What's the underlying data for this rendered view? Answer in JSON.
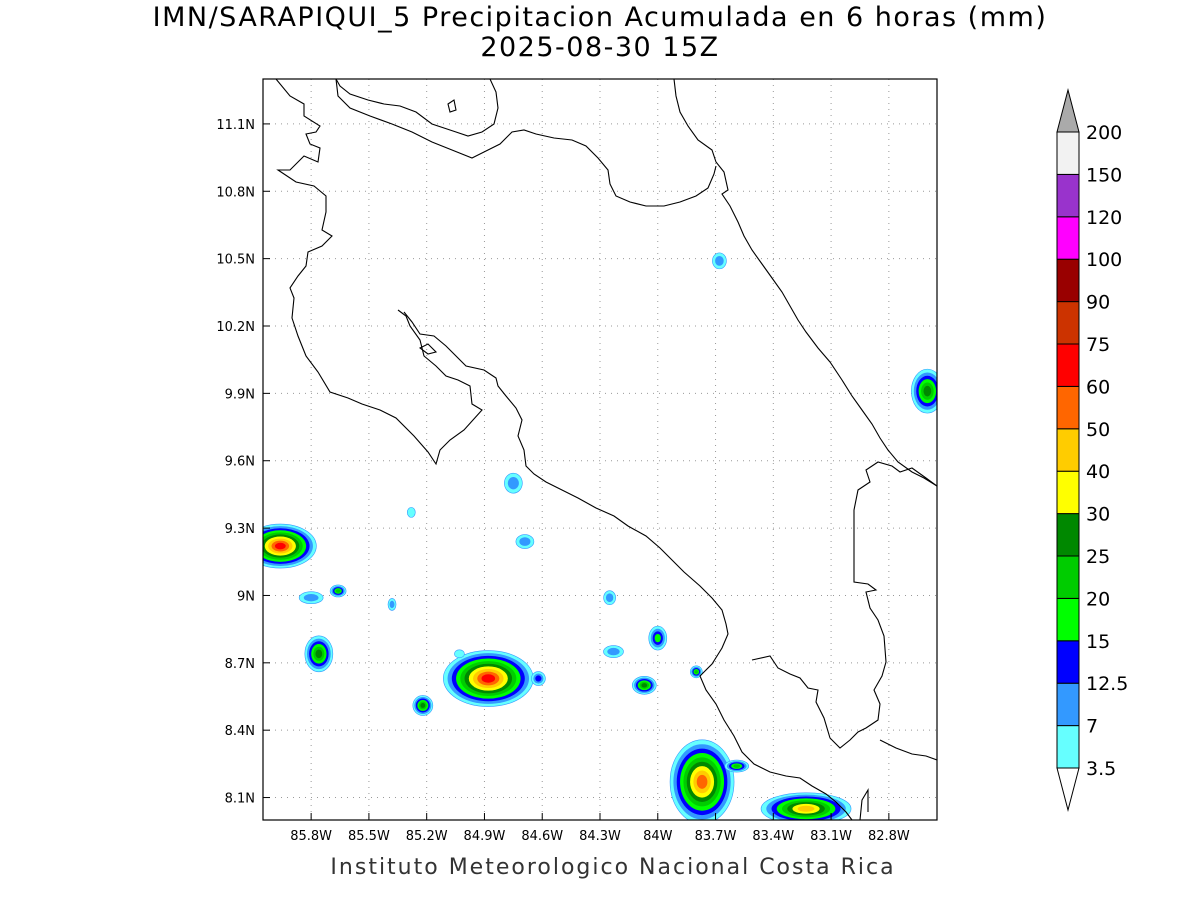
{
  "header": {
    "title_line1": "IMN/SARAPIQUI_5 Precipitacion Acumulada en 6 horas (mm)",
    "title_line2": "2025-08-30 15Z"
  },
  "footer": {
    "credit": "Instituto Meteorologico Nacional Costa Rica"
  },
  "map": {
    "lon_range": [
      -86.05,
      -82.55
    ],
    "lat_range": [
      8.0,
      11.3
    ],
    "lon_ticks": [
      {
        "value": -85.8,
        "label": "85.8W"
      },
      {
        "value": -85.5,
        "label": "85.5W"
      },
      {
        "value": -85.2,
        "label": "85.2W"
      },
      {
        "value": -84.9,
        "label": "84.9W"
      },
      {
        "value": -84.6,
        "label": "84.6W"
      },
      {
        "value": -84.3,
        "label": "84.3W"
      },
      {
        "value": -84.0,
        "label": "84W"
      },
      {
        "value": -83.7,
        "label": "83.7W"
      },
      {
        "value": -83.4,
        "label": "83.4W"
      },
      {
        "value": -83.1,
        "label": "83.1W"
      },
      {
        "value": -82.8,
        "label": "82.8W"
      }
    ],
    "lat_ticks": [
      {
        "value": 8.1,
        "label": "8.1N"
      },
      {
        "value": 8.4,
        "label": "8.4N"
      },
      {
        "value": 8.7,
        "label": "8.7N"
      },
      {
        "value": 9.0,
        "label": "9N"
      },
      {
        "value": 9.3,
        "label": "9.3N"
      },
      {
        "value": 9.6,
        "label": "9.6N"
      },
      {
        "value": 9.9,
        "label": "9.9N"
      },
      {
        "value": 10.2,
        "label": "10.2N"
      },
      {
        "value": 10.5,
        "label": "10.5N"
      },
      {
        "value": 10.8,
        "label": "10.8N"
      },
      {
        "value": 11.1,
        "label": "11.1N"
      }
    ]
  },
  "colorbar": {
    "levels": [
      {
        "label": "3.5",
        "color": "#66ffff"
      },
      {
        "label": "7",
        "color": "#3399ff"
      },
      {
        "label": "12.5",
        "color": "#0000ff"
      },
      {
        "label": "15",
        "color": "#00ff00"
      },
      {
        "label": "20",
        "color": "#00cc00"
      },
      {
        "label": "25",
        "color": "#008800"
      },
      {
        "label": "30",
        "color": "#ffff00"
      },
      {
        "label": "40",
        "color": "#ffcc00"
      },
      {
        "label": "50",
        "color": "#ff6600"
      },
      {
        "label": "60",
        "color": "#ff0000"
      },
      {
        "label": "75",
        "color": "#cc3300"
      },
      {
        "label": "90",
        "color": "#990000"
      },
      {
        "label": "100",
        "color": "#ff00ff"
      },
      {
        "label": "120",
        "color": "#9933cc"
      },
      {
        "label": "150",
        "color": "#f2f2f2"
      },
      {
        "label": "200",
        "color": "#aaaaaa"
      }
    ]
  },
  "precipitation_cells": [
    {
      "lon": -85.96,
      "lat": 9.22,
      "rx": 36,
      "ry": 22,
      "max_level": 9
    },
    {
      "lon": -85.76,
      "lat": 8.74,
      "rx": 14,
      "ry": 18,
      "max_level": 5
    },
    {
      "lon": -85.8,
      "lat": 8.99,
      "rx": 12,
      "ry": 6,
      "max_level": 1
    },
    {
      "lon": -85.66,
      "lat": 9.02,
      "rx": 8,
      "ry": 6,
      "max_level": 4
    },
    {
      "lon": -85.38,
      "lat": 8.96,
      "rx": 4,
      "ry": 6,
      "max_level": 1
    },
    {
      "lon": -85.22,
      "lat": 8.51,
      "rx": 10,
      "ry": 10,
      "max_level": 5
    },
    {
      "lon": -84.88,
      "lat": 8.63,
      "rx": 45,
      "ry": 28,
      "max_level": 9
    },
    {
      "lon": -84.62,
      "lat": 8.63,
      "rx": 7,
      "ry": 7,
      "max_level": 2
    },
    {
      "lon": -84.75,
      "lat": 9.5,
      "rx": 9,
      "ry": 10,
      "max_level": 1
    },
    {
      "lon": -84.69,
      "lat": 9.24,
      "rx": 9,
      "ry": 7,
      "max_level": 1
    },
    {
      "lon": -84.07,
      "lat": 8.6,
      "rx": 12,
      "ry": 9,
      "max_level": 5
    },
    {
      "lon": -84.0,
      "lat": 8.81,
      "rx": 9,
      "ry": 12,
      "max_level": 3
    },
    {
      "lon": -84.25,
      "lat": 8.99,
      "rx": 6,
      "ry": 7,
      "max_level": 1
    },
    {
      "lon": -84.23,
      "lat": 8.75,
      "rx": 10,
      "ry": 6,
      "max_level": 1
    },
    {
      "lon": -83.8,
      "lat": 8.66,
      "rx": 6,
      "ry": 6,
      "max_level": 4
    },
    {
      "lon": -83.77,
      "lat": 8.17,
      "rx": 32,
      "ry": 42,
      "max_level": 8
    },
    {
      "lon": -83.59,
      "lat": 8.24,
      "rx": 12,
      "ry": 6,
      "max_level": 4
    },
    {
      "lon": -83.23,
      "lat": 8.05,
      "rx": 45,
      "ry": 16,
      "max_level": 7
    },
    {
      "lon": -82.6,
      "lat": 9.91,
      "rx": 16,
      "ry": 22,
      "max_level": 5
    },
    {
      "lon": -83.68,
      "lat": 10.49,
      "rx": 7,
      "ry": 8,
      "max_level": 1
    },
    {
      "lon": -85.28,
      "lat": 9.37,
      "rx": 4,
      "ry": 5,
      "max_level": 0
    },
    {
      "lon": -85.03,
      "lat": 8.74,
      "rx": 5,
      "ry": 4,
      "max_level": 0
    }
  ]
}
